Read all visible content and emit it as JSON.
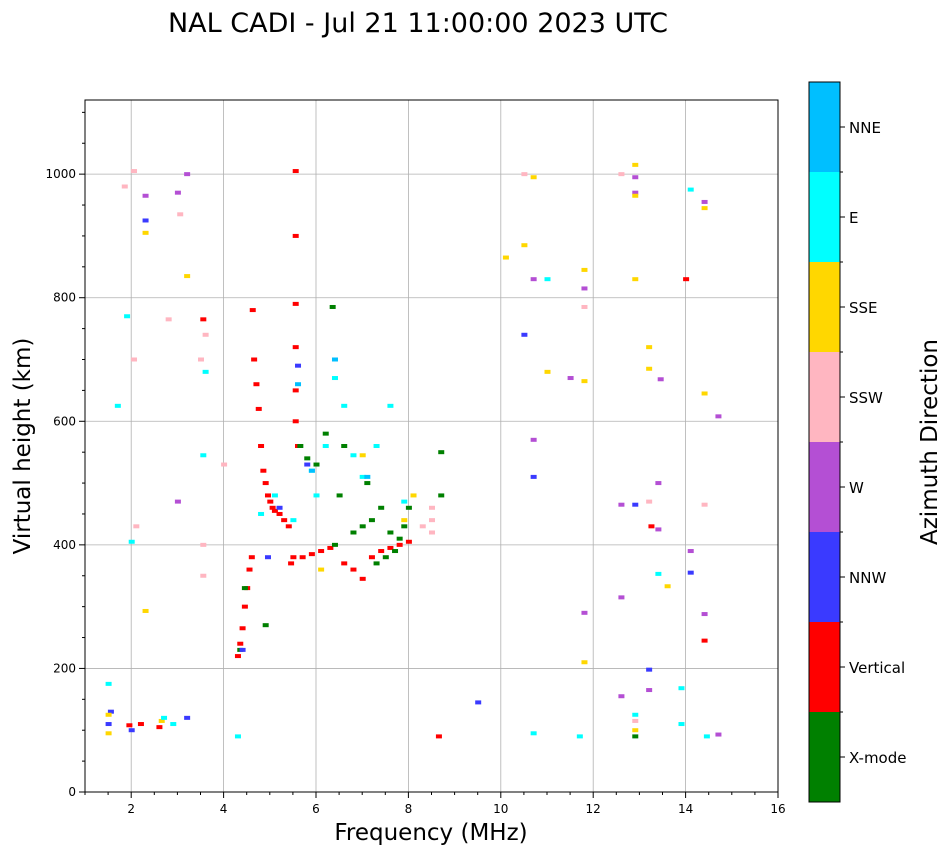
{
  "chart_data": {
    "type": "scatter",
    "title": "NAL CADI - Jul 21 11:00:00 2023 UTC",
    "xlabel": "Frequency (MHz)",
    "ylabel": "Virtual height (km)",
    "xlim": [
      1,
      16
    ],
    "ylim": [
      0,
      1120
    ],
    "grid": true,
    "x_ticks": [
      2,
      4,
      6,
      8,
      10,
      12,
      14,
      16
    ],
    "y_ticks": [
      0,
      200,
      400,
      600,
      800,
      1000
    ],
    "colorbar": {
      "label": "Azimuth Direction",
      "categories": [
        "X-mode",
        "Vertical",
        "NNW",
        "W",
        "SSW",
        "SSE",
        "E",
        "NNE"
      ],
      "colors": [
        "#008000",
        "#ff0000",
        "#3a3aff",
        "#b44fd4",
        "#ffb6c1",
        "#ffd700",
        "#00ffff",
        "#00bfff"
      ]
    },
    "series": [
      {
        "name": "Vertical",
        "color": "#ff0000",
        "points": [
          [
            1.95,
            108
          ],
          [
            2.2,
            110
          ],
          [
            2.6,
            105
          ],
          [
            3.55,
            765
          ],
          [
            4.3,
            220
          ],
          [
            4.35,
            240
          ],
          [
            4.4,
            265
          ],
          [
            4.45,
            300
          ],
          [
            4.5,
            330
          ],
          [
            4.55,
            360
          ],
          [
            4.6,
            380
          ],
          [
            4.62,
            780
          ],
          [
            4.65,
            700
          ],
          [
            4.7,
            660
          ],
          [
            4.75,
            620
          ],
          [
            4.8,
            560
          ],
          [
            4.85,
            520
          ],
          [
            4.9,
            500
          ],
          [
            4.95,
            480
          ],
          [
            5.0,
            470
          ],
          [
            5.05,
            460
          ],
          [
            5.1,
            455
          ],
          [
            5.2,
            450
          ],
          [
            5.3,
            440
          ],
          [
            5.4,
            430
          ],
          [
            5.45,
            370
          ],
          [
            5.5,
            380
          ],
          [
            5.55,
            1005
          ],
          [
            5.55,
            900
          ],
          [
            5.55,
            790
          ],
          [
            5.55,
            720
          ],
          [
            5.55,
            650
          ],
          [
            5.55,
            600
          ],
          [
            5.6,
            560
          ],
          [
            5.7,
            380
          ],
          [
            5.9,
            385
          ],
          [
            6.1,
            390
          ],
          [
            6.3,
            395
          ],
          [
            6.6,
            370
          ],
          [
            6.8,
            360
          ],
          [
            7.0,
            345
          ],
          [
            7.2,
            380
          ],
          [
            7.4,
            390
          ],
          [
            7.6,
            395
          ],
          [
            7.8,
            400
          ],
          [
            8.0,
            405
          ],
          [
            8.65,
            90
          ],
          [
            13.25,
            430
          ],
          [
            14.0,
            830
          ],
          [
            14.4,
            245
          ]
        ]
      },
      {
        "name": "X-mode",
        "color": "#008000",
        "points": [
          [
            4.35,
            230
          ],
          [
            4.45,
            330
          ],
          [
            5.65,
            560
          ],
          [
            5.8,
            540
          ],
          [
            6.0,
            530
          ],
          [
            6.2,
            580
          ],
          [
            6.35,
            785
          ],
          [
            6.4,
            400
          ],
          [
            6.5,
            480
          ],
          [
            6.6,
            560
          ],
          [
            6.8,
            420
          ],
          [
            7.0,
            430
          ],
          [
            7.1,
            500
          ],
          [
            7.2,
            440
          ],
          [
            7.3,
            370
          ],
          [
            7.4,
            460
          ],
          [
            7.5,
            380
          ],
          [
            7.6,
            420
          ],
          [
            7.7,
            390
          ],
          [
            7.8,
            410
          ],
          [
            7.9,
            430
          ],
          [
            8.0,
            460
          ],
          [
            8.7,
            480
          ],
          [
            8.7,
            550
          ],
          [
            12.9,
            90
          ],
          [
            4.9,
            270
          ]
        ]
      },
      {
        "name": "NNW",
        "color": "#3a3aff",
        "points": [
          [
            1.5,
            110
          ],
          [
            1.55,
            130
          ],
          [
            2.0,
            100
          ],
          [
            2.3,
            925
          ],
          [
            3.2,
            120
          ],
          [
            4.4,
            230
          ],
          [
            4.95,
            380
          ],
          [
            5.2,
            460
          ],
          [
            5.6,
            690
          ],
          [
            5.8,
            530
          ],
          [
            9.5,
            145
          ],
          [
            10.5,
            740
          ],
          [
            10.7,
            510
          ],
          [
            12.9,
            465
          ],
          [
            13.2,
            198
          ],
          [
            14.1,
            355
          ]
        ]
      },
      {
        "name": "W",
        "color": "#b44fd4",
        "points": [
          [
            2.3,
            965
          ],
          [
            3.0,
            970
          ],
          [
            3.2,
            1000
          ],
          [
            3.0,
            470
          ],
          [
            10.7,
            570
          ],
          [
            10.7,
            830
          ],
          [
            11.5,
            670
          ],
          [
            11.8,
            290
          ],
          [
            11.8,
            815
          ],
          [
            12.6,
            465
          ],
          [
            12.6,
            315
          ],
          [
            12.6,
            155
          ],
          [
            12.9,
            995
          ],
          [
            12.9,
            970
          ],
          [
            13.2,
            165
          ],
          [
            13.4,
            500
          ],
          [
            13.4,
            425
          ],
          [
            13.45,
            668
          ],
          [
            14.1,
            390
          ],
          [
            14.4,
            955
          ],
          [
            14.4,
            288
          ],
          [
            14.7,
            608
          ],
          [
            14.7,
            93
          ]
        ]
      },
      {
        "name": "SSW",
        "color": "#ffb6c1",
        "points": [
          [
            1.85,
            980
          ],
          [
            2.05,
            1005
          ],
          [
            2.05,
            700
          ],
          [
            2.1,
            430
          ],
          [
            2.8,
            765
          ],
          [
            3.05,
            935
          ],
          [
            3.5,
            700
          ],
          [
            3.55,
            400
          ],
          [
            3.55,
            350
          ],
          [
            3.6,
            740
          ],
          [
            4.0,
            530
          ],
          [
            8.5,
            420
          ],
          [
            8.5,
            440
          ],
          [
            8.5,
            460
          ],
          [
            8.3,
            430
          ],
          [
            10.5,
            1000
          ],
          [
            11.8,
            785
          ],
          [
            12.6,
            1000
          ],
          [
            13.2,
            470
          ],
          [
            14.4,
            465
          ],
          [
            12.9,
            115
          ]
        ]
      },
      {
        "name": "SSE",
        "color": "#ffd700",
        "points": [
          [
            1.5,
            95
          ],
          [
            1.5,
            125
          ],
          [
            2.3,
            905
          ],
          [
            2.3,
            293
          ],
          [
            2.65,
            115
          ],
          [
            3.2,
            835
          ],
          [
            6.1,
            360
          ],
          [
            7.0,
            545
          ],
          [
            7.9,
            440
          ],
          [
            8.1,
            480
          ],
          [
            10.1,
            865
          ],
          [
            10.5,
            885
          ],
          [
            10.7,
            995
          ],
          [
            11.0,
            680
          ],
          [
            11.8,
            845
          ],
          [
            11.8,
            665
          ],
          [
            11.8,
            210
          ],
          [
            12.9,
            1015
          ],
          [
            12.9,
            965
          ],
          [
            12.9,
            830
          ],
          [
            13.2,
            720
          ],
          [
            13.2,
            685
          ],
          [
            13.6,
            333
          ],
          [
            14.4,
            945
          ],
          [
            14.4,
            645
          ],
          [
            12.9,
            100
          ]
        ]
      },
      {
        "name": "E",
        "color": "#00ffff",
        "points": [
          [
            1.5,
            175
          ],
          [
            1.7,
            625
          ],
          [
            1.9,
            770
          ],
          [
            2.0,
            405
          ],
          [
            2.7,
            120
          ],
          [
            2.9,
            110
          ],
          [
            3.55,
            545
          ],
          [
            3.6,
            680
          ],
          [
            4.3,
            90
          ],
          [
            4.8,
            450
          ],
          [
            5.1,
            480
          ],
          [
            5.5,
            440
          ],
          [
            5.9,
            520
          ],
          [
            6.0,
            480
          ],
          [
            6.2,
            560
          ],
          [
            6.4,
            670
          ],
          [
            6.6,
            625
          ],
          [
            6.8,
            545
          ],
          [
            7.0,
            510
          ],
          [
            7.3,
            560
          ],
          [
            7.6,
            625
          ],
          [
            7.9,
            470
          ],
          [
            10.7,
            95
          ],
          [
            11.0,
            830
          ],
          [
            11.7,
            90
          ],
          [
            12.9,
            125
          ],
          [
            13.4,
            353
          ],
          [
            13.9,
            110
          ],
          [
            13.9,
            168
          ],
          [
            14.1,
            975
          ],
          [
            14.45,
            90
          ]
        ]
      },
      {
        "name": "NNE",
        "color": "#00bfff",
        "points": [
          [
            5.6,
            660
          ],
          [
            5.9,
            520
          ],
          [
            6.4,
            700
          ],
          [
            7.1,
            510
          ]
        ]
      }
    ]
  }
}
